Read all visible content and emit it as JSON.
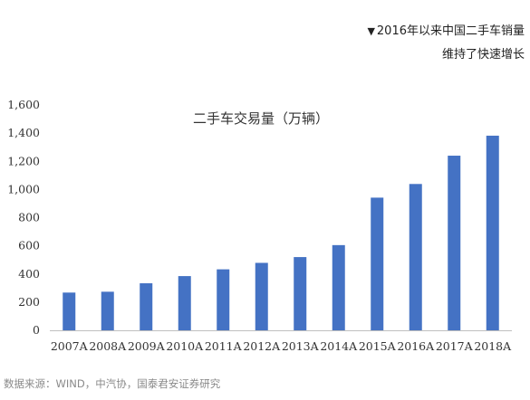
{
  "header": {
    "marker": "▼",
    "line1": "2016年以来中国二手车销量",
    "line2": "维持了快速增长"
  },
  "chart_data": {
    "type": "bar",
    "title": "二手车交易量（万辆）",
    "xlabel": "",
    "ylabel": "",
    "categories": [
      "2007A",
      "2008A",
      "2009A",
      "2010A",
      "2011A",
      "2012A",
      "2013A",
      "2014A",
      "2015A",
      "2016A",
      "2017A",
      "2018A"
    ],
    "values": [
      268,
      274,
      334,
      385,
      433,
      479,
      520,
      605,
      942,
      1039,
      1240,
      1382
    ],
    "ylim": [
      0,
      1600
    ],
    "yticks": [
      0,
      200,
      400,
      600,
      800,
      1000,
      1200,
      1400,
      1600
    ],
    "ytick_labels": [
      "0",
      "200",
      "400",
      "600",
      "800",
      "1,000",
      "1,200",
      "1,400",
      "1,600"
    ],
    "bar_color": "#4472C4",
    "grid": false,
    "legend": "none"
  },
  "source": "数据来源：WIND，中汽协，国泰君安证券研究"
}
